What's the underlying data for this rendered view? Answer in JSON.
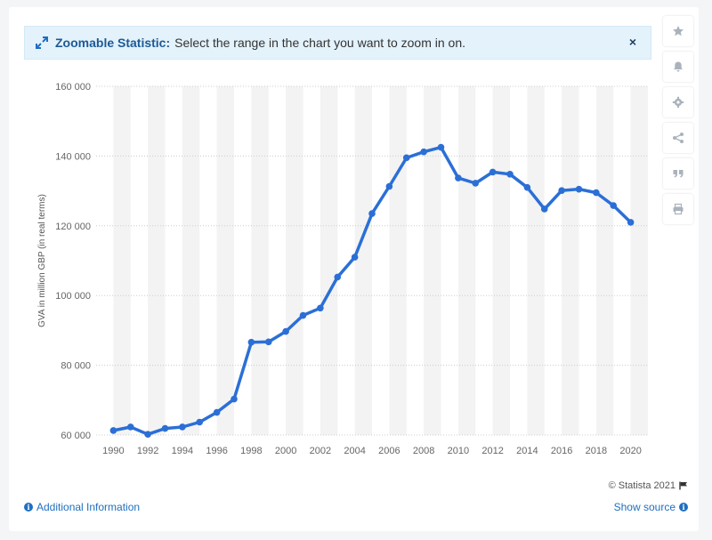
{
  "banner": {
    "title": "Zoomable Statistic:",
    "message": "Select the range in the chart you want to zoom in on.",
    "close_label": "×"
  },
  "sidebar": {
    "buttons": [
      {
        "name": "favorite-button",
        "icon": "star-icon"
      },
      {
        "name": "notification-button",
        "icon": "bell-icon"
      },
      {
        "name": "settings-button",
        "icon": "gear-icon"
      },
      {
        "name": "share-button",
        "icon": "share-icon"
      },
      {
        "name": "cite-button",
        "icon": "quote-icon"
      },
      {
        "name": "print-button",
        "icon": "printer-icon"
      }
    ]
  },
  "footer": {
    "copyright": "© Statista 2021",
    "additional_info": "Additional Information",
    "show_source": "Show source"
  },
  "colors": {
    "line": "#2b6fd6",
    "band": "#f3f3f3",
    "grid": "#cccccc",
    "accent": "#1f6fbf"
  },
  "chart_data": {
    "type": "line",
    "title": "",
    "xlabel": "",
    "ylabel": "GVA in million GBP (in real terms)",
    "ylim": [
      60000,
      160000
    ],
    "yticks": [
      60000,
      80000,
      100000,
      120000,
      140000,
      160000
    ],
    "ytick_labels": [
      "60 000",
      "80 000",
      "100 000",
      "120 000",
      "140 000",
      "160 000"
    ],
    "xticks": [
      1990,
      1992,
      1994,
      1996,
      1998,
      2000,
      2002,
      2004,
      2006,
      2008,
      2010,
      2012,
      2014,
      2016,
      2018,
      2020
    ],
    "grid": true,
    "x": [
      1990,
      1991,
      1992,
      1993,
      1994,
      1995,
      1996,
      1997,
      1998,
      1999,
      2000,
      2001,
      2002,
      2003,
      2004,
      2005,
      2006,
      2007,
      2008,
      2009,
      2010,
      2011,
      2012,
      2013,
      2014,
      2015,
      2016,
      2017,
      2018,
      2019,
      2020
    ],
    "series": [
      {
        "name": "",
        "values": [
          61300,
          62300,
          60200,
          61900,
          62300,
          63700,
          66500,
          70300,
          86600,
          86700,
          89700,
          94300,
          96400,
          105300,
          111000,
          123500,
          131300,
          139500,
          141200,
          142500,
          133700,
          132200,
          135400,
          134800,
          131000,
          124800,
          130100,
          130500,
          129500,
          125800,
          121000
        ]
      }
    ]
  }
}
